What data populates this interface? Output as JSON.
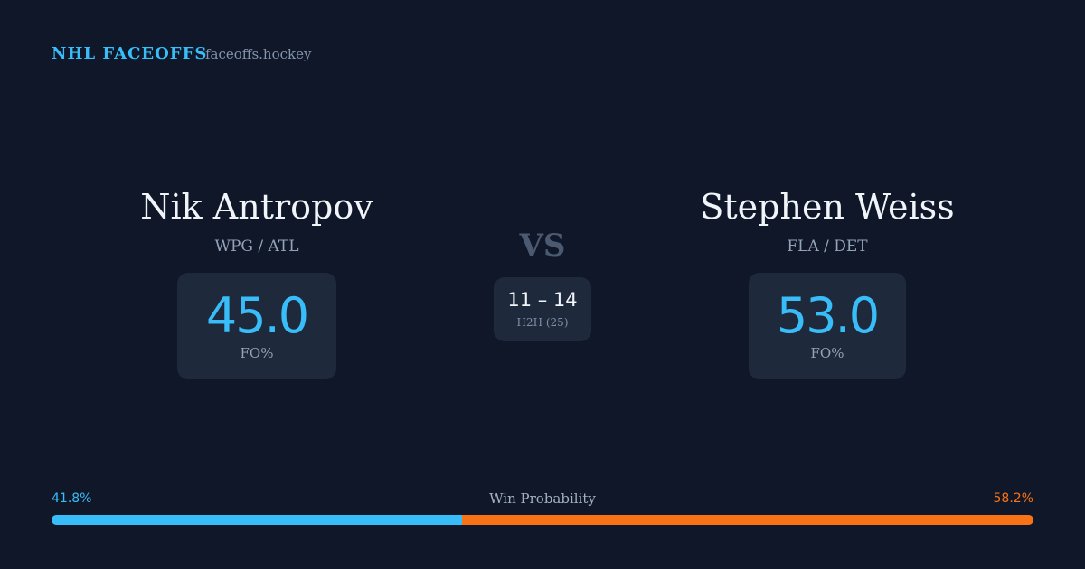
{
  "header": {
    "brand": "NHL FACEOFFS",
    "site": "faceoffs.hockey"
  },
  "players": [
    {
      "name": "Nik Antropov",
      "teams": "WPG / ATL",
      "fo_pct": "45.0",
      "fo_label": "FO%"
    },
    {
      "name": "Stephen Weiss",
      "teams": "FLA / DET",
      "fo_pct": "53.0",
      "fo_label": "FO%"
    }
  ],
  "versus": {
    "label": "VS",
    "h2h_score": "11 – 14",
    "h2h_label": "H2H (25)"
  },
  "win_probability": {
    "label": "Win Probability",
    "left": {
      "value": 41.8,
      "label": "41.8%"
    },
    "right": {
      "value": 58.2,
      "label": "58.2%"
    }
  }
}
